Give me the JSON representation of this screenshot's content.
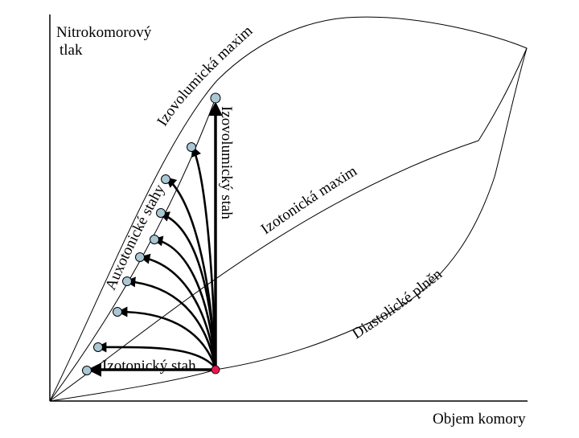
{
  "axes": {
    "y_label_line1": "Nitrokomorový",
    "y_label_line2": "tlak",
    "x_label": "Objem komory"
  },
  "curves": {
    "isovolumic_maxima": "Izovolumická maxima",
    "isotonic_maxima": "Izotonická maxima",
    "diastolic_filling": "Diastolické plnění",
    "auxotonic_states": "Auxotonické stahy"
  },
  "arrows": {
    "isovolumic_contraction": "Izovolumický stah",
    "isotonic_contraction": "Izotonický stah"
  },
  "colors": {
    "line": "#000000",
    "marker_fill": "#a9c7d4",
    "start_point": "#e8184f"
  }
}
